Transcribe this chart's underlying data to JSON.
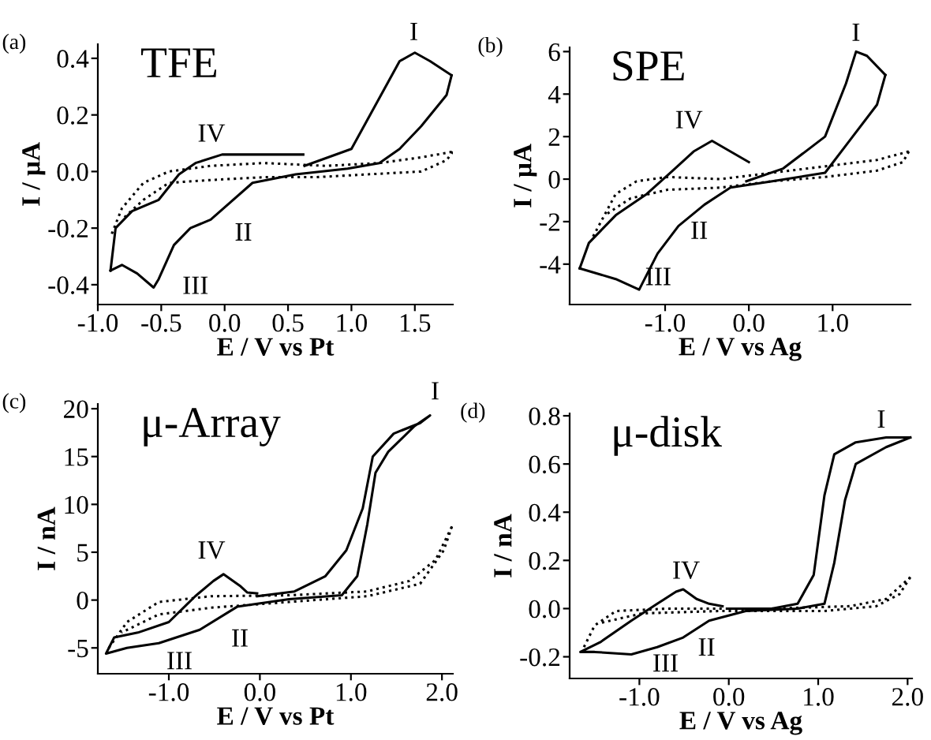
{
  "chart_data": [
    {
      "type": "line",
      "title": "TFE",
      "xlabel": "E / V vs Pt",
      "ylabel": "I / μA",
      "annotations": [
        "(a)",
        "I",
        "II",
        "III",
        "IV"
      ],
      "xlim": [
        -1.0,
        1.8
      ],
      "ylim": [
        -0.47,
        0.45
      ],
      "xticks": [
        {
          "value": -1.0,
          "label": "-1.0"
        },
        {
          "value": -0.5,
          "label": "-0.5"
        },
        {
          "value": 0.0,
          "label": "0.0"
        },
        {
          "value": 0.5,
          "label": "0.5"
        },
        {
          "value": 1.0,
          "label": "1.0"
        },
        {
          "value": 1.5,
          "label": "1.5"
        }
      ],
      "yticks": [
        {
          "value": -0.4,
          "label": "-0.4"
        },
        {
          "value": -0.2,
          "label": "-0.2"
        },
        {
          "value": 0.0,
          "label": "0.0"
        },
        {
          "value": 0.2,
          "label": "0.2"
        },
        {
          "value": 0.4,
          "label": "0.4"
        }
      ],
      "series": [
        {
          "color": "#000000",
          "line_style": "solid",
          "x": [
            0.63,
            1.0,
            1.38,
            1.5,
            1.62,
            1.79
          ],
          "values": [
            0.02,
            0.08,
            0.39,
            0.42,
            0.39,
            0.34
          ]
        },
        {
          "color": "#000000",
          "line_style": "solid",
          "x": [
            1.79,
            1.75,
            1.55,
            1.38,
            1.22,
            0.97,
            0.56,
            0.22,
            -0.11,
            -0.27,
            -0.4,
            -0.52,
            -0.56,
            -0.69,
            -0.81,
            -0.9
          ],
          "values": [
            0.34,
            0.27,
            0.16,
            0.08,
            0.03,
            0.01,
            -0.01,
            -0.04,
            -0.17,
            -0.2,
            -0.26,
            -0.38,
            -0.41,
            -0.36,
            -0.33,
            -0.35
          ]
        },
        {
          "color": "#000000",
          "line_style": "solid",
          "x": [
            -0.9,
            -0.86,
            -0.73,
            -0.52,
            -0.36,
            -0.23,
            -0.02,
            0.22,
            0.62
          ],
          "values": [
            -0.35,
            -0.2,
            -0.14,
            -0.1,
            -0.01,
            0.03,
            0.06,
            0.06,
            0.06
          ]
        },
        {
          "color": "#000000",
          "line_style": "dotted",
          "x": [
            -0.89,
            -0.81,
            -0.64,
            -0.44,
            -0.11,
            0.31,
            0.8,
            1.22,
            1.55,
            1.8
          ],
          "values": [
            -0.22,
            -0.13,
            -0.04,
            0.0,
            0.02,
            0.03,
            0.02,
            0.03,
            0.05,
            0.07
          ]
        },
        {
          "color": "#000000",
          "line_style": "dotted",
          "x": [
            1.8,
            1.75,
            1.55,
            1.13,
            0.72,
            0.31,
            -0.11,
            -0.44,
            -0.64,
            -0.81
          ],
          "values": [
            0.07,
            0.04,
            0.0,
            -0.01,
            -0.02,
            -0.02,
            -0.03,
            -0.04,
            -0.1,
            -0.17
          ]
        }
      ]
    },
    {
      "type": "line",
      "title": "SPE",
      "xlabel": "E / V vs Ag",
      "ylabel": "I / μA",
      "annotations": [
        "(b)",
        "I",
        "II",
        "III",
        "IV"
      ],
      "xlim": [
        -2.14,
        1.93
      ],
      "ylim": [
        -5.9,
        6.2
      ],
      "xticks": [
        {
          "value": -1.0,
          "label": "-1.0"
        },
        {
          "value": 0.0,
          "label": "0.0"
        },
        {
          "value": 1.0,
          "label": "1.0"
        }
      ],
      "yticks": [
        -4,
        -2,
        0,
        2,
        4,
        6
      ],
      "series": [
        {
          "color": "#000000",
          "line_style": "solid",
          "x": [
            -0.03,
            0.41,
            0.91,
            1.16,
            1.28,
            1.41,
            1.63
          ],
          "values": [
            -0.1,
            0.5,
            2.0,
            4.5,
            6.0,
            5.8,
            4.9
          ]
        },
        {
          "color": "#000000",
          "line_style": "solid",
          "x": [
            1.63,
            1.53,
            1.22,
            0.91,
            0.28,
            -0.22,
            -0.53,
            -0.84,
            -1.09,
            -1.31,
            -1.59,
            -2.02
          ],
          "values": [
            4.9,
            3.5,
            1.9,
            0.3,
            -0.1,
            -0.4,
            -1.2,
            -2.2,
            -3.5,
            -5.2,
            -4.7,
            -4.2
          ]
        },
        {
          "color": "#000000",
          "line_style": "solid",
          "x": [
            -2.02,
            -1.91,
            -1.59,
            -1.22,
            -0.91,
            -0.66,
            -0.44,
            -0.22,
            0.0
          ],
          "values": [
            -4.2,
            -3.0,
            -1.7,
            -0.7,
            0.4,
            1.3,
            1.8,
            1.3,
            0.8
          ]
        },
        {
          "color": "#000000",
          "line_style": "dotted",
          "x": [
            -1.86,
            -1.59,
            -1.34,
            -0.97,
            -0.34,
            0.28,
            0.91,
            1.53,
            1.91
          ],
          "values": [
            -2.7,
            -0.7,
            -0.1,
            0.1,
            0.0,
            0.3,
            0.6,
            0.9,
            1.3
          ]
        },
        {
          "color": "#000000",
          "line_style": "dotted",
          "x": [
            1.91,
            1.84,
            1.53,
            0.91,
            0.28,
            -0.34,
            -0.97,
            -1.41,
            -1.72
          ],
          "values": [
            1.3,
            0.8,
            0.4,
            0.1,
            -0.1,
            -0.4,
            -0.5,
            -0.9,
            -1.7
          ]
        }
      ]
    },
    {
      "type": "line",
      "title": "μ-Array",
      "xlabel": "E / V vs Pt",
      "ylabel": "I / nA",
      "annotations": [
        "(c)",
        "I",
        "II",
        "III",
        "IV"
      ],
      "xlim": [
        -1.78,
        2.12
      ],
      "ylim": [
        -7.7,
        20.5
      ],
      "xticks": [
        {
          "value": -1.0,
          "label": "-1.0"
        },
        {
          "value": 0.0,
          "label": "0.0"
        },
        {
          "value": 1.0,
          "label": "1.0"
        },
        {
          "value": 2.0,
          "label": "2.0"
        }
      ],
      "yticks": [
        -5,
        0,
        5,
        10,
        15,
        20
      ],
      "series": [
        {
          "color": "#000000",
          "line_style": "solid",
          "x": [
            -0.03,
            0.38,
            0.72,
            0.95,
            1.13,
            1.24,
            1.47,
            1.76,
            1.87,
            1.7,
            1.41,
            1.27,
            1.18,
            1.07,
            0.9,
            0.32,
            -0.25,
            -0.66,
            -1.11,
            -1.46,
            -1.69,
            -1.6,
            -1.34,
            -1.0,
            -0.71,
            -0.51,
            -0.4,
            -0.22,
            -0.14,
            -0.03
          ],
          "values": [
            0.4,
            0.9,
            2.5,
            5.2,
            9.6,
            15.0,
            17.4,
            18.5,
            19.3,
            18.2,
            15.5,
            13.3,
            7.9,
            2.5,
            0.5,
            0.1,
            -0.7,
            -3.1,
            -4.5,
            -5.0,
            -5.6,
            -3.9,
            -3.4,
            -2.3,
            0.4,
            2.0,
            2.7,
            1.5,
            0.8,
            0.7
          ]
        },
        {
          "color": "#000000",
          "line_style": "dotted",
          "x": [
            -1.66,
            -1.46,
            -1.11,
            -0.54,
            0.32,
            1.18,
            1.64,
            1.93,
            2.11
          ],
          "values": [
            -5.0,
            -2.3,
            -0.2,
            0.4,
            0.5,
            0.9,
            2.0,
            4.2,
            7.7
          ]
        },
        {
          "color": "#000000",
          "line_style": "dotted",
          "x": [
            2.11,
            2.02,
            1.76,
            1.18,
            0.32,
            -0.54,
            -1.11,
            -1.52
          ],
          "values": [
            7.7,
            5.2,
            1.7,
            0.4,
            -0.2,
            -0.8,
            -1.5,
            -3.4
          ]
        }
      ]
    },
    {
      "type": "line",
      "title": "μ-disk",
      "xlabel": "E / V vs Ag",
      "ylabel": "I / nA",
      "annotations": [
        "(d)",
        "I",
        "II",
        "III",
        "IV"
      ],
      "xlim": [
        -1.78,
        2.05
      ],
      "ylim": [
        -0.29,
        0.81
      ],
      "xticks": [
        {
          "value": -1.0,
          "label": "-1.0"
        },
        {
          "value": 0.0,
          "label": "0.0"
        },
        {
          "value": 1.0,
          "label": "1.0"
        },
        {
          "value": 2.0,
          "label": "2.0"
        }
      ],
      "yticks": [
        {
          "value": -0.2,
          "label": "-0.2"
        },
        {
          "value": 0.0,
          "label": "0.0"
        },
        {
          "value": 0.2,
          "label": "0.2"
        },
        {
          "value": 0.4,
          "label": "0.4"
        },
        {
          "value": 0.6,
          "label": "0.6"
        },
        {
          "value": 0.8,
          "label": "0.8"
        }
      ],
      "series": [
        {
          "color": "#000000",
          "line_style": "solid",
          "x": [
            0.0,
            0.48,
            0.77,
            0.95,
            1.07,
            1.18,
            1.42,
            1.76,
            2.03
          ],
          "values": [
            0.0,
            0.0,
            0.02,
            0.14,
            0.47,
            0.64,
            0.69,
            0.71,
            0.71
          ]
        },
        {
          "color": "#000000",
          "line_style": "solid",
          "x": [
            2.03,
            1.76,
            1.42,
            1.3,
            1.18,
            1.07,
            0.77,
            0.19,
            -0.22,
            -0.51,
            -0.8,
            -1.09,
            -1.5,
            -1.66,
            -1.44,
            -1.09,
            -0.8,
            -0.59,
            -0.51,
            -0.36,
            -0.22,
            -0.07
          ],
          "values": [
            0.71,
            0.67,
            0.6,
            0.45,
            0.19,
            0.02,
            0.0,
            -0.01,
            -0.05,
            -0.12,
            -0.16,
            -0.19,
            -0.18,
            -0.18,
            -0.14,
            -0.05,
            0.02,
            0.07,
            0.08,
            0.04,
            0.02,
            0.01
          ]
        },
        {
          "color": "#000000",
          "line_style": "dotted",
          "x": [
            -1.62,
            -1.5,
            -1.26,
            -0.68,
            0.48,
            1.36,
            1.76,
            2.03
          ],
          "values": [
            -0.16,
            -0.07,
            -0.01,
            0.0,
            0.0,
            0.01,
            0.04,
            0.13
          ]
        },
        {
          "color": "#000000",
          "line_style": "dotted",
          "x": [
            2.03,
            1.91,
            1.65,
            1.07,
            -0.1,
            -0.97,
            -1.44
          ],
          "values": [
            0.13,
            0.06,
            0.01,
            -0.01,
            -0.01,
            -0.02,
            -0.06
          ]
        }
      ]
    }
  ]
}
